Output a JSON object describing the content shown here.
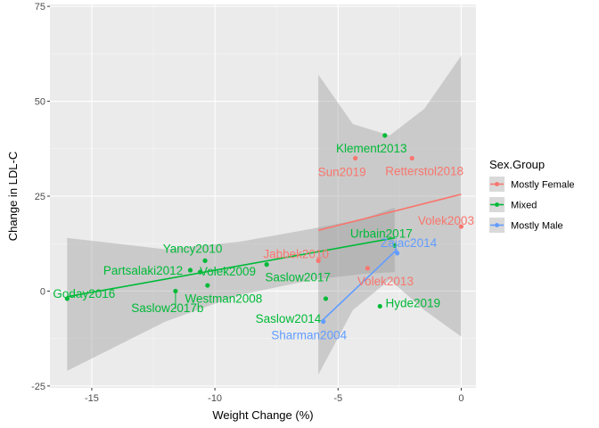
{
  "chart_data": {
    "type": "scatter",
    "title": "",
    "xlabel": "Weight Change (%)",
    "ylabel": "Change in LDL-C",
    "xlim": [
      -16.7,
      0.6
    ],
    "ylim": [
      -25.5,
      75.5
    ],
    "xticks": [
      -15,
      -10,
      -5,
      0
    ],
    "xtick_labels": [
      "-15",
      "-10",
      "-5",
      "0"
    ],
    "yticks": [
      -25,
      0,
      25,
      50,
      75
    ],
    "ytick_labels": [
      "-25",
      "0",
      "25",
      "50",
      "75"
    ],
    "grid": true,
    "legend": {
      "title": "Sex.Group",
      "position": "right",
      "entries": [
        {
          "name": "Mostly Female",
          "color": "#F8766D"
        },
        {
          "name": "Mixed",
          "color": "#00BA38"
        },
        {
          "name": "Mostly Male",
          "color": "#619CFF"
        }
      ]
    },
    "series": [
      {
        "name": "Mostly Female",
        "color": "#F8766D",
        "points": [
          {
            "label": "Sun2019",
            "x": -4.3,
            "y": 35
          },
          {
            "label": "Retterstol2018",
            "x": -2.0,
            "y": 35
          },
          {
            "label": "Volek2003",
            "x": 0.0,
            "y": 17
          },
          {
            "label": "Jabbek2010",
            "x": -5.8,
            "y": 8
          },
          {
            "label": "Volek2013",
            "x": -3.8,
            "y": 6
          }
        ],
        "fit": {
          "x": [
            -5.8,
            0.0
          ],
          "y": [
            16,
            25.5
          ]
        },
        "ci": {
          "x": [
            -5.8,
            -4.4,
            -2.9,
            -1.5,
            0.0
          ],
          "upper": [
            57,
            44,
            41,
            48,
            62
          ],
          "lower": [
            -22,
            -5,
            3,
            -5,
            -12
          ]
        }
      },
      {
        "name": "Mixed",
        "color": "#00BA38",
        "points": [
          {
            "label": "Klement2013",
            "x": -3.1,
            "y": 41
          },
          {
            "label": "Urbain2017",
            "x": -2.7,
            "y": 12
          },
          {
            "label": "Yancy2010",
            "x": -10.4,
            "y": 8
          },
          {
            "label": "Partsalaki2012",
            "x": -11.0,
            "y": 5.5
          },
          {
            "label": "Volek2009",
            "x": -10.6,
            "y": 5
          },
          {
            "label": "Saslow2017",
            "x": -7.9,
            "y": 7
          },
          {
            "label": "Goday2016",
            "x": -16.0,
            "y": -2
          },
          {
            "label": "Westman2008",
            "x": -11.6,
            "y": 0
          },
          {
            "label": "Saslow2017b",
            "x": -10.3,
            "y": 1.5
          },
          {
            "label": "Saslow2014",
            "x": -5.5,
            "y": -2
          },
          {
            "label": "Hyde2019",
            "x": -3.3,
            "y": -4
          }
        ],
        "fit": {
          "x": [
            -16.0,
            -2.7
          ],
          "y": [
            -1.5,
            14
          ]
        },
        "ci": {
          "x": [
            -16.0,
            -12.0,
            -9.0,
            -6.0,
            -4.0,
            -2.7
          ],
          "upper": [
            14,
            11,
            13,
            16.5,
            19,
            22
          ],
          "lower": [
            -21,
            -8,
            -1,
            3,
            4.5,
            5
          ]
        }
      },
      {
        "name": "Mostly Male",
        "color": "#619CFF",
        "points": [
          {
            "label": "Sharman2004",
            "x": -5.6,
            "y": -8
          },
          {
            "label": "Zajac2014",
            "x": -2.6,
            "y": 10
          }
        ],
        "fit": {
          "x": [
            -5.6,
            -2.6
          ],
          "y": [
            -7.5,
            11
          ]
        },
        "ci": null
      }
    ]
  }
}
